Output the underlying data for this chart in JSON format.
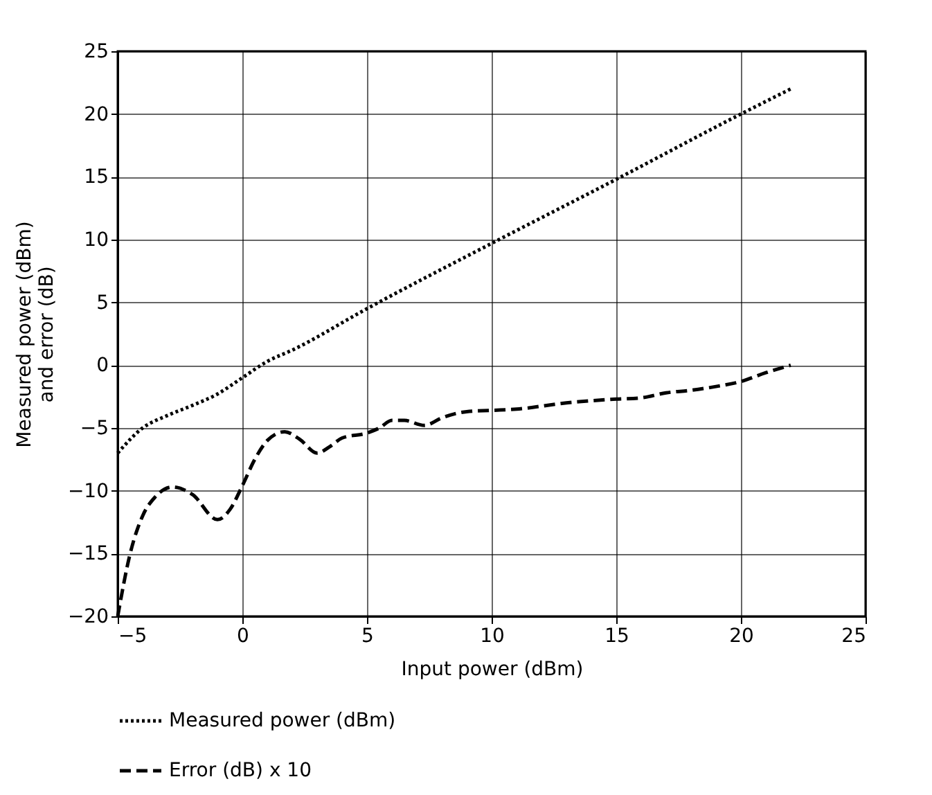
{
  "chart_data": {
    "type": "line",
    "xlabel": "Input power (dBm)",
    "ylabel": "Measured power (dBm)\nand error (dB)",
    "xlim": [
      -5,
      25
    ],
    "xticks": [
      -5,
      0,
      5,
      10,
      15,
      20,
      25
    ],
    "ylim": [
      -20,
      25
    ],
    "yticks": [
      -20,
      -15,
      -10,
      -5,
      0,
      5,
      10,
      15,
      20,
      25
    ],
    "grid": true,
    "legend": "bottom left",
    "series": [
      {
        "name": "Measured power (dBm)",
        "color": "#000000",
        "line_style": "dotted",
        "x": [
          -5,
          -4,
          -3,
          -2,
          -1,
          0,
          1,
          2,
          5,
          10,
          15,
          20,
          22
        ],
        "values": [
          -7,
          -5,
          -4,
          -3.2,
          -2.3,
          -1,
          0.3,
          1.2,
          4.5,
          9.7,
          14.8,
          20,
          22
        ]
      },
      {
        "name": "Error (dB) x 10",
        "color": "#000000",
        "line_style": "dashed",
        "x": [
          -5,
          -4.5,
          -4,
          -3.5,
          -2.8,
          -2,
          -1,
          -0.5,
          0,
          0.5,
          1,
          1.7,
          2.3,
          3,
          3.5,
          4,
          5,
          5.5,
          6,
          6.5,
          7.3,
          8,
          9,
          10,
          11,
          13,
          15,
          16,
          17,
          18,
          19,
          20,
          21,
          22
        ],
        "values": [
          -20,
          -15,
          -12,
          -10.5,
          -9.7,
          -10.3,
          -12.3,
          -11.5,
          -9.6,
          -7.5,
          -6,
          -5.3,
          -5.9,
          -7,
          -6.5,
          -5.8,
          -5.4,
          -5,
          -4.4,
          -4.4,
          -4.8,
          -4.2,
          -3.7,
          -3.6,
          -3.5,
          -3,
          -2.7,
          -2.6,
          -2.2,
          -2,
          -1.7,
          -1.3,
          -0.6,
          0
        ]
      }
    ]
  }
}
